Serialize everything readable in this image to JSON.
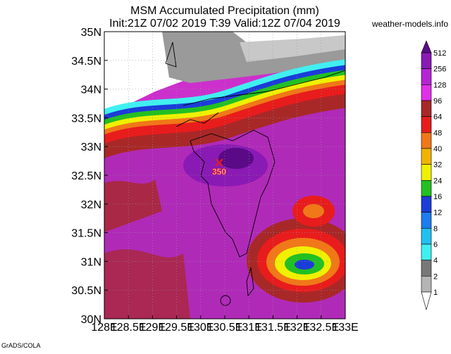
{
  "header": {
    "title": "MSM Accumulated Precipitation (mm)",
    "subtitle": "Init:21Z 07/02 2019  T:39 Valid:12Z 07/04 2019",
    "credit": "weather-models.info"
  },
  "map": {
    "lat_labels": [
      "35N",
      "34.5N",
      "34N",
      "33.5N",
      "33N",
      "32.5N",
      "32N",
      "31.5N",
      "31N",
      "30.5N",
      "30N"
    ],
    "lon_labels": [
      "128E",
      "128.5E",
      "129E",
      "129.5E",
      "130E",
      "130.5E",
      "131E",
      "131.5E",
      "132E",
      "132.5E",
      "133E"
    ],
    "max_label": "350"
  },
  "colorbar": {
    "labels": [
      "512",
      "256",
      "128",
      "96",
      "64",
      "48",
      "40",
      "32",
      "24",
      "16",
      "12",
      "8",
      "6",
      "4",
      "2",
      "1"
    ],
    "colors": [
      "#5a0a86",
      "#8a1ab4",
      "#b424d4",
      "#e030e8",
      "#a82828",
      "#e81c1c",
      "#f07818",
      "#f0b400",
      "#f0f000",
      "#22c022",
      "#1c3cd8",
      "#1c7cf0",
      "#20c0f0",
      "#40f0f0",
      "#787878",
      "#b4b4b4",
      "#ffffff"
    ]
  },
  "footer": {
    "source": "GrADS/COLA"
  }
}
